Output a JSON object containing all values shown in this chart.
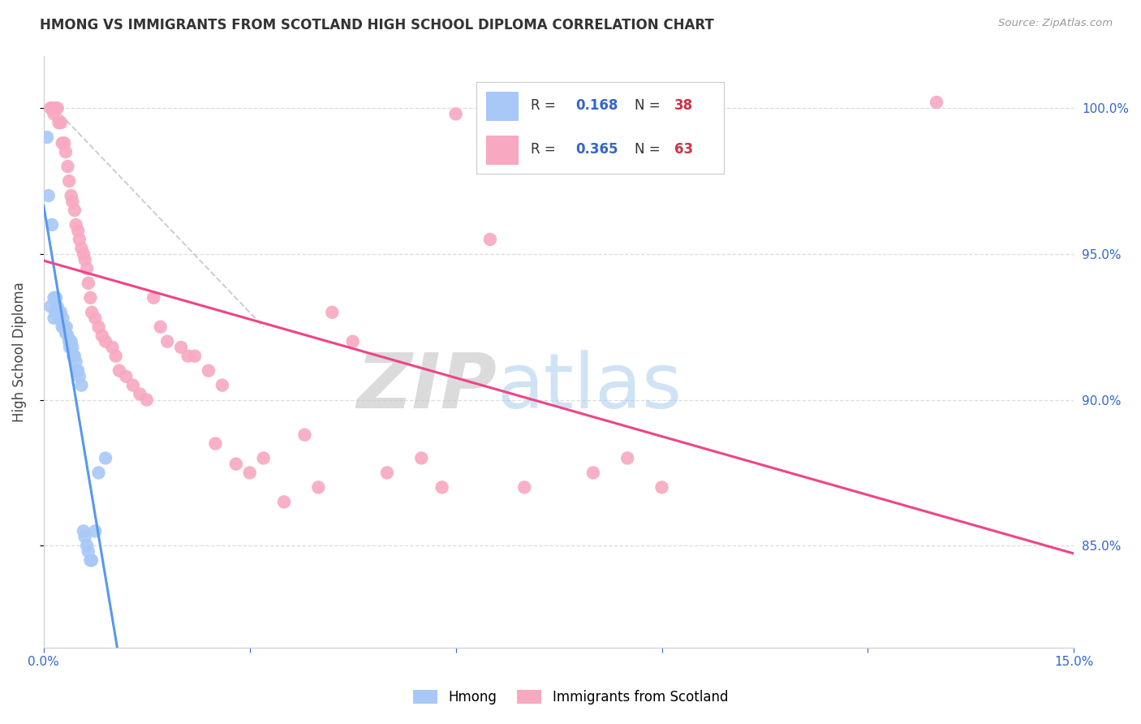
{
  "title": "HMONG VS IMMIGRANTS FROM SCOTLAND HIGH SCHOOL DIPLOMA CORRELATION CHART",
  "source": "Source: ZipAtlas.com",
  "ylabel": "High School Diploma",
  "xlim": [
    0.0,
    15.0
  ],
  "ylim": [
    81.5,
    101.8
  ],
  "yticks": [
    85.0,
    90.0,
    95.0,
    100.0
  ],
  "xticks": [
    0.0,
    3.0,
    6.0,
    9.0,
    12.0,
    15.0
  ],
  "ytick_labels": [
    "85.0%",
    "90.0%",
    "95.0%",
    "100.0%"
  ],
  "watermark_zip": "ZIP",
  "watermark_atlas": "atlas",
  "hmong_color": "#a8c8f8",
  "scotland_color": "#f8a8c0",
  "hmong_line_color": "#5599ee",
  "scotland_line_color": "#ee4488",
  "diagonal_color": "#cccccc",
  "background_color": "#ffffff",
  "grid_color": "#dddddd",
  "hmong_x": [
    0.05,
    0.07,
    0.1,
    0.12,
    0.15,
    0.15,
    0.17,
    0.18,
    0.2,
    0.22,
    0.22,
    0.25,
    0.27,
    0.28,
    0.3,
    0.32,
    0.33,
    0.35,
    0.37,
    0.38,
    0.4,
    0.42,
    0.43,
    0.45,
    0.47,
    0.48,
    0.5,
    0.52,
    0.55,
    0.58,
    0.6,
    0.63,
    0.65,
    0.68,
    0.7,
    0.75,
    0.8,
    0.9
  ],
  "hmong_y": [
    99.0,
    97.0,
    93.2,
    96.0,
    93.5,
    92.8,
    93.0,
    93.5,
    93.2,
    93.0,
    92.8,
    93.0,
    92.5,
    92.8,
    92.5,
    92.3,
    92.5,
    92.2,
    92.0,
    91.8,
    92.0,
    91.8,
    91.5,
    91.5,
    91.3,
    91.0,
    91.0,
    90.8,
    90.5,
    85.5,
    85.3,
    85.0,
    84.8,
    84.5,
    84.5,
    85.5,
    87.5,
    88.0
  ],
  "scotland_x": [
    0.1,
    0.12,
    0.15,
    0.17,
    0.2,
    0.22,
    0.25,
    0.27,
    0.3,
    0.32,
    0.35,
    0.37,
    0.4,
    0.42,
    0.45,
    0.47,
    0.5,
    0.52,
    0.55,
    0.58,
    0.6,
    0.63,
    0.65,
    0.68,
    0.7,
    0.75,
    0.8,
    0.85,
    0.9,
    1.0,
    1.05,
    1.1,
    1.2,
    1.3,
    1.4,
    1.5,
    1.6,
    1.7,
    1.8,
    2.0,
    2.1,
    2.2,
    2.4,
    2.5,
    2.6,
    2.8,
    3.0,
    3.2,
    3.5,
    3.8,
    4.0,
    4.2,
    4.5,
    5.0,
    5.5,
    5.8,
    6.0,
    6.5,
    7.0,
    8.0,
    8.5,
    9.0,
    13.0
  ],
  "scotland_y": [
    100.0,
    100.0,
    99.8,
    100.0,
    100.0,
    99.5,
    99.5,
    98.8,
    98.8,
    98.5,
    98.0,
    97.5,
    97.0,
    96.8,
    96.5,
    96.0,
    95.8,
    95.5,
    95.2,
    95.0,
    94.8,
    94.5,
    94.0,
    93.5,
    93.0,
    92.8,
    92.5,
    92.2,
    92.0,
    91.8,
    91.5,
    91.0,
    90.8,
    90.5,
    90.2,
    90.0,
    93.5,
    92.5,
    92.0,
    91.8,
    91.5,
    91.5,
    91.0,
    88.5,
    90.5,
    87.8,
    87.5,
    88.0,
    86.5,
    88.8,
    87.0,
    93.0,
    92.0,
    87.5,
    88.0,
    87.0,
    99.8,
    95.5,
    87.0,
    87.5,
    88.0,
    87.0,
    100.2
  ]
}
